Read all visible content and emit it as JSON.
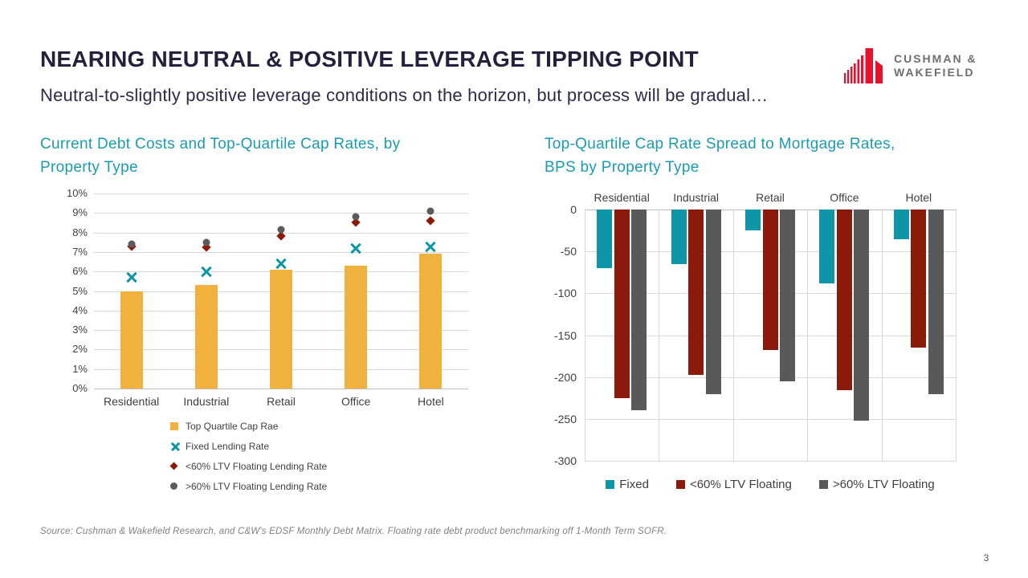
{
  "header": {
    "title": "NEARING NEUTRAL & POSITIVE LEVERAGE TIPPING POINT",
    "subtitle": "Neutral-to-slightly positive leverage conditions on the horizon, but process will be gradual…",
    "logo": {
      "line1": "CUSHMAN &",
      "line2": "WAKEFIELD"
    }
  },
  "footer": {
    "source": "Source: Cushman & Wakefield Research, and C&W's EDSF Monthly Debt Matrix. Floating rate debt product benchmarking off 1-Month Term SOFR.",
    "page_number": "3"
  },
  "colors": {
    "title_navy": "#24213C",
    "heading_teal": "#1A9CB0",
    "logo_red": "#E8112D",
    "logo_gray": "#6D6E71",
    "bar_yellow": "#F0B23C",
    "series_teal": "#0E95A8",
    "series_dark_red": "#8C1A0B",
    "series_gray": "#58595B",
    "axis_text": "#404040",
    "gridline": "#D9D9D9"
  },
  "chart_data": [
    {
      "id": "debt-costs",
      "type": "bar",
      "subtype": "combo bar + scatter markers",
      "title": "Current Debt Costs and Top-Quartile Cap Rates, by\nProperty Type",
      "categories": [
        "Residential",
        "Industrial",
        "Retail",
        "Office",
        "Hotel"
      ],
      "ylim": [
        0,
        10
      ],
      "ytick_step": 1,
      "ytick_suffix": "%",
      "grid": "horizontal",
      "legend_position": "bottom-left",
      "series": [
        {
          "name": "Top Quartile Cap Rae",
          "type": "bar",
          "marker": "square",
          "color": "#F0B23C",
          "values": [
            5.0,
            5.3,
            6.1,
            6.3,
            6.9
          ]
        },
        {
          "name": "Fixed Lending Rate",
          "type": "scatter",
          "marker": "x",
          "color": "#0E95A8",
          "values": [
            5.7,
            6.0,
            6.4,
            7.2,
            7.25
          ]
        },
        {
          "name": "<60% LTV Floating Lending Rate",
          "type": "scatter",
          "marker": "diamond",
          "color": "#8C1A0B",
          "values": [
            7.3,
            7.25,
            7.8,
            8.5,
            8.6
          ]
        },
        {
          "name": ">60% LTV Floating Lending Rate",
          "type": "scatter",
          "marker": "circle",
          "color": "#5A5B5E",
          "values": [
            7.4,
            7.5,
            8.15,
            8.8,
            9.1
          ]
        }
      ]
    },
    {
      "id": "cap-rate-spread",
      "type": "bar",
      "subtype": "grouped negative bars, bps",
      "title": "Top-Quartile Cap Rate Spread to Mortgage Rates,\nBPS by Property Type",
      "categories": [
        "Residential",
        "Industrial",
        "Retail",
        "Office",
        "Hotel"
      ],
      "ylim": [
        -300,
        0
      ],
      "ytick_step": 50,
      "ytick_suffix": "",
      "grid": "horizontal+vertical",
      "legend_position": "bottom-center",
      "series": [
        {
          "name": "Fixed",
          "color": "#0E95A8",
          "values": [
            -70,
            -65,
            -25,
            -88,
            -35
          ]
        },
        {
          "name": "<60% LTV Floating",
          "color": "#8C1A0B",
          "values": [
            -225,
            -197,
            -168,
            -216,
            -165
          ]
        },
        {
          "name": ">60% LTV Floating",
          "color": "#58595B",
          "values": [
            -240,
            -220,
            -205,
            -252,
            -220
          ]
        }
      ]
    }
  ]
}
